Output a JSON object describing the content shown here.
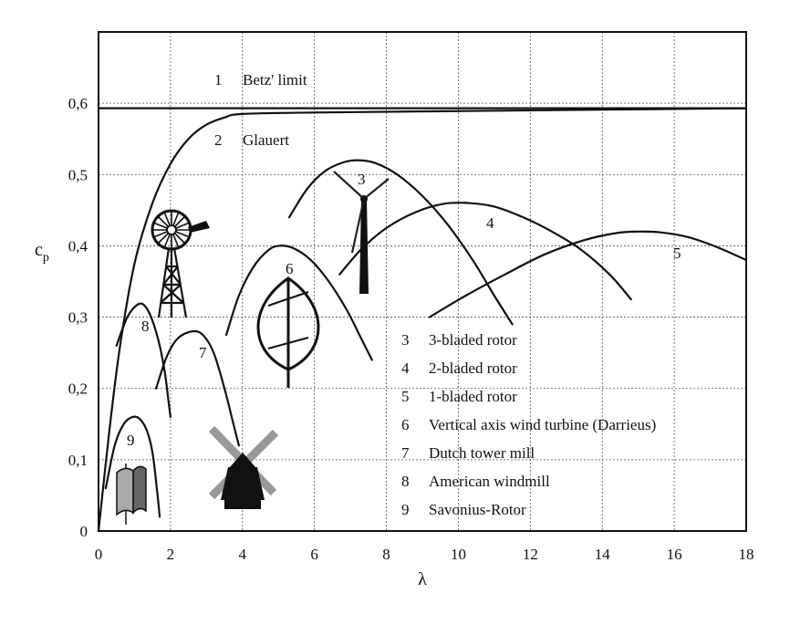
{
  "chart_data": {
    "type": "line",
    "xlabel": "λ",
    "ylabel": "c",
    "ylabel_sub": "p",
    "xlim": [
      0,
      18
    ],
    "ylim": [
      0,
      0.7
    ],
    "x_ticks": [
      "0",
      "2",
      "4",
      "6",
      "8",
      "10",
      "12",
      "14",
      "16",
      "18"
    ],
    "y_ticks": [
      "0",
      "0,1",
      "0,2",
      "0,3",
      "0,4",
      "0,5",
      "0,6"
    ],
    "grid": true,
    "series": [
      {
        "label": "1",
        "name": "Betz' limit",
        "x": [
          0,
          18
        ],
        "y": [
          0.593,
          0.593
        ]
      },
      {
        "label": "2",
        "name": "Glauert",
        "x": [
          0,
          0.3,
          0.6,
          1.0,
          1.5,
          2.0,
          2.5,
          3.0,
          3.5,
          4.0,
          6.0,
          10.0,
          14.0,
          18.0
        ],
        "y": [
          0.0,
          0.14,
          0.26,
          0.375,
          0.46,
          0.515,
          0.55,
          0.57,
          0.58,
          0.585,
          0.587,
          0.589,
          0.591,
          0.593
        ]
      },
      {
        "label": "3",
        "name": "3-bladed rotor",
        "x": [
          5.3,
          5.8,
          6.3,
          6.8,
          7.2,
          7.7,
          8.3,
          9.0,
          9.7,
          10.4,
          11.0,
          11.5
        ],
        "y": [
          0.44,
          0.48,
          0.505,
          0.517,
          0.52,
          0.516,
          0.5,
          0.47,
          0.43,
          0.38,
          0.33,
          0.29
        ]
      },
      {
        "label": "4",
        "name": "2-bladed rotor",
        "x": [
          6.7,
          7.3,
          8.0,
          8.8,
          9.6,
          10.3,
          11.0,
          11.8,
          12.6,
          13.4,
          14.2,
          14.8
        ],
        "y": [
          0.36,
          0.395,
          0.425,
          0.447,
          0.459,
          0.46,
          0.455,
          0.44,
          0.42,
          0.395,
          0.36,
          0.325
        ]
      },
      {
        "label": "5",
        "name": "1-bladed rotor",
        "x": [
          9.2,
          10.2,
          11.3,
          12.4,
          13.5,
          14.4,
          15.0,
          15.6,
          16.4,
          17.2,
          18.0
        ],
        "y": [
          0.3,
          0.33,
          0.36,
          0.388,
          0.408,
          0.418,
          0.42,
          0.419,
          0.412,
          0.398,
          0.38
        ]
      },
      {
        "label": "6",
        "name": "Vertical axis wind turbine (Darrieus)",
        "x": [
          3.55,
          3.9,
          4.3,
          4.7,
          5.0,
          5.4,
          5.9,
          6.4,
          6.9,
          7.3,
          7.6
        ],
        "y": [
          0.275,
          0.33,
          0.37,
          0.393,
          0.4,
          0.397,
          0.38,
          0.35,
          0.31,
          0.27,
          0.24
        ]
      },
      {
        "label": "7",
        "name": "Dutch tower mill",
        "x": [
          1.6,
          1.9,
          2.2,
          2.6,
          2.9,
          3.2,
          3.5,
          3.75,
          3.9
        ],
        "y": [
          0.2,
          0.245,
          0.27,
          0.28,
          0.275,
          0.25,
          0.2,
          0.15,
          0.12
        ]
      },
      {
        "label": "8",
        "name": "American windmill",
        "x": [
          0.5,
          0.8,
          1.1,
          1.3,
          1.5,
          1.7,
          1.85,
          1.95,
          2.0
        ],
        "y": [
          0.26,
          0.3,
          0.318,
          0.315,
          0.295,
          0.26,
          0.22,
          0.18,
          0.16
        ]
      },
      {
        "label": "9",
        "name": "Savonius-Rotor",
        "x": [
          0.2,
          0.45,
          0.7,
          0.95,
          1.15,
          1.35,
          1.5,
          1.62,
          1.7
        ],
        "y": [
          0.06,
          0.12,
          0.15,
          0.16,
          0.157,
          0.14,
          0.11,
          0.06,
          0.02
        ]
      }
    ]
  }
}
